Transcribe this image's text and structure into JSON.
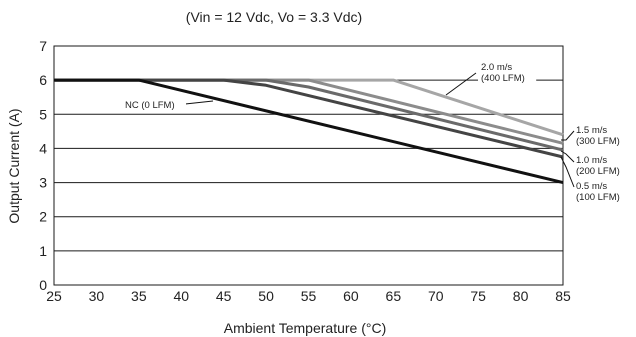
{
  "chart_data": {
    "type": "line",
    "title": "(Vin = 12 Vdc, Vo = 3.3 Vdc)",
    "xlabel": "Ambient Temperature (°C)",
    "ylabel": "Output Current (A)",
    "xlim": [
      25,
      85
    ],
    "ylim": [
      0,
      7
    ],
    "xticks": [
      "25",
      "30",
      "35",
      "40",
      "45",
      "50",
      "55",
      "60",
      "65",
      "70",
      "75",
      "80",
      "85"
    ],
    "yticks": [
      "0",
      "1",
      "2",
      "3",
      "4",
      "5",
      "6",
      "7"
    ],
    "grid": "horizontal",
    "series": [
      {
        "name": "NC (0 LFM)",
        "color": "#111111",
        "x": [
          25,
          35,
          85
        ],
        "y": [
          6.0,
          6.0,
          3.0
        ]
      },
      {
        "name": "0.5 m/s (100 LFM)",
        "color": "#444444",
        "x": [
          25,
          45,
          50,
          85
        ],
        "y": [
          6.0,
          6.0,
          5.85,
          3.75
        ]
      },
      {
        "name": "1.0 m/s (200 LFM)",
        "color": "#6a6a6a",
        "x": [
          25,
          50,
          55,
          85
        ],
        "y": [
          6.0,
          6.0,
          5.8,
          3.95
        ]
      },
      {
        "name": "1.5 m/s (300 LFM)",
        "color": "#8c8c8c",
        "x": [
          25,
          55,
          85
        ],
        "y": [
          6.0,
          6.0,
          4.15
        ]
      },
      {
        "name": "2.0 m/s (400 LFM)",
        "color": "#a6a6a6",
        "x": [
          25,
          65,
          85
        ],
        "y": [
          6.0,
          6.0,
          4.4
        ]
      }
    ],
    "annotations": [
      {
        "lines": [
          "NC (0 LFM)"
        ]
      },
      {
        "lines": [
          "2.0 m/s",
          "(400 LFM)"
        ]
      },
      {
        "lines": [
          "1.5 m/s",
          "(300 LFM)"
        ]
      },
      {
        "lines": [
          "1.0 m/s",
          "(200 LFM)"
        ]
      },
      {
        "lines": [
          "0.5 m/s",
          "(100 LFM)"
        ]
      }
    ]
  }
}
